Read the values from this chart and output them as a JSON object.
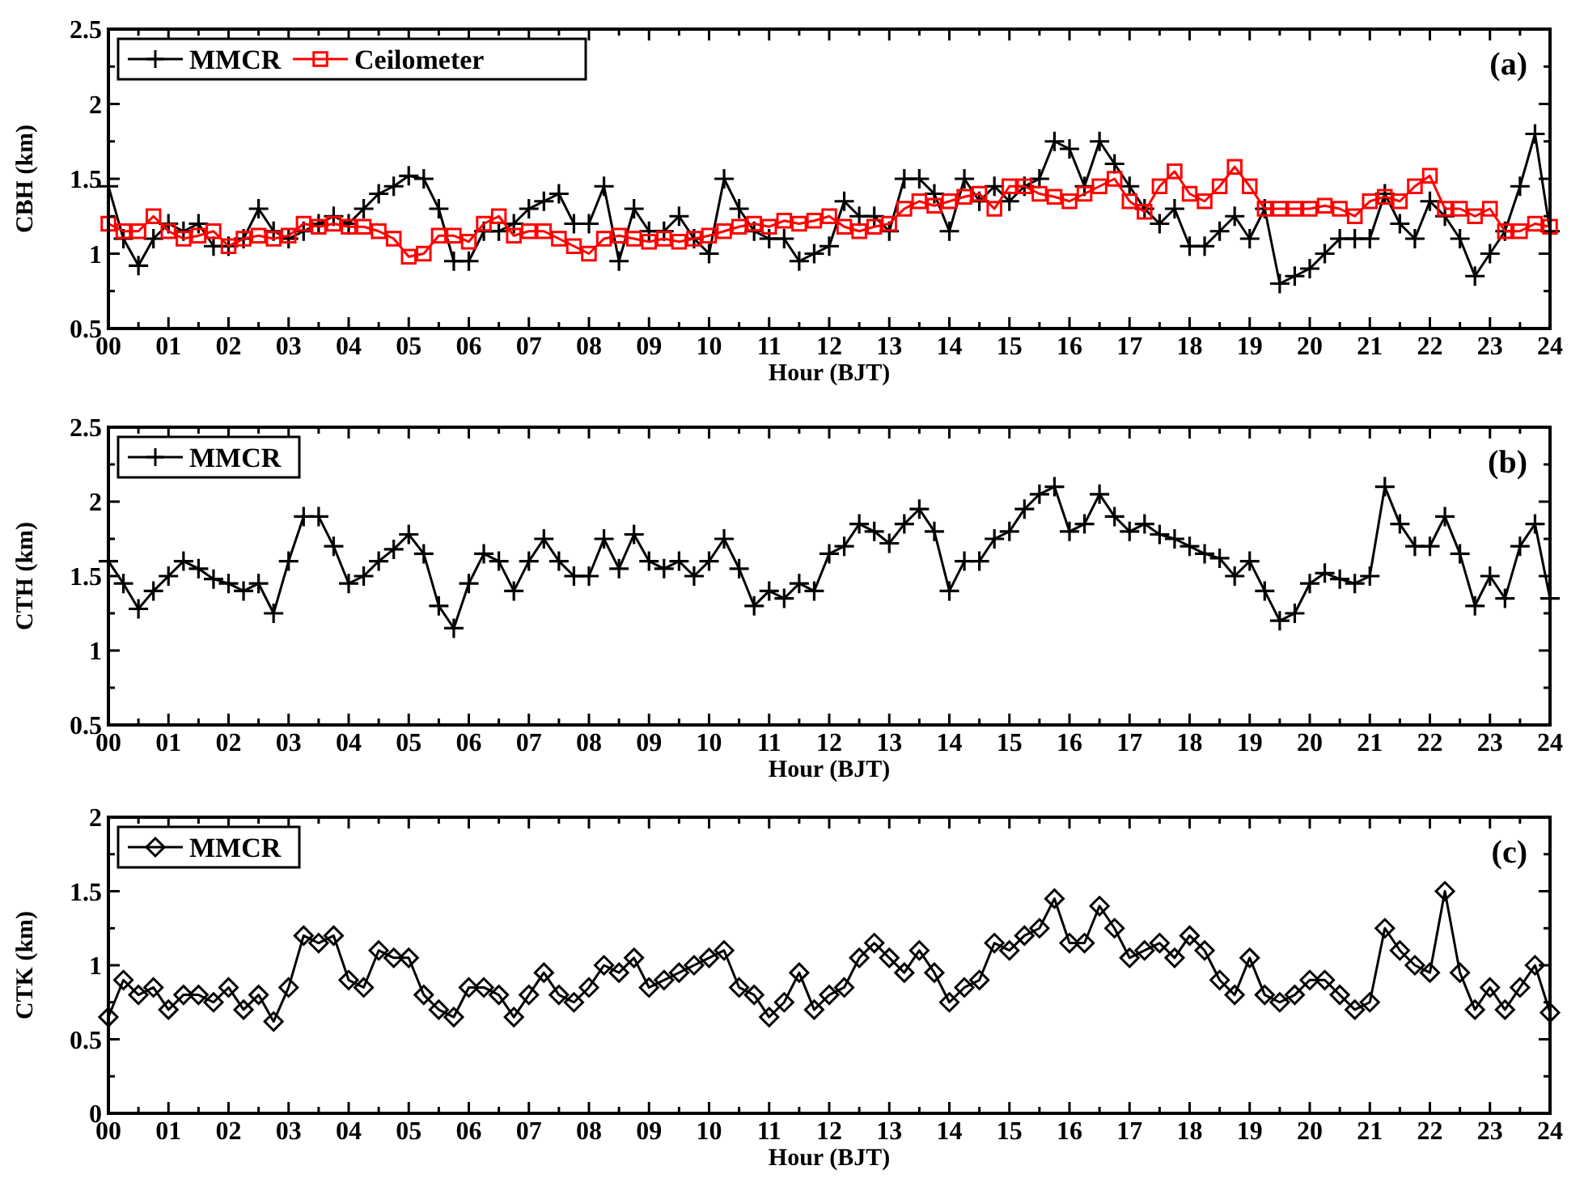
{
  "chart_data": [
    {
      "type": "line",
      "ylabel": "CBH (km)",
      "xlabel": "Hour (BJT)",
      "annotations": [
        "(a)"
      ],
      "legend": "top left",
      "grid": false,
      "line_style": "solid",
      "x": [
        0,
        0.25,
        0.5,
        0.75,
        1,
        1.25,
        1.5,
        1.75,
        2,
        2.25,
        2.5,
        2.75,
        3,
        3.25,
        3.5,
        3.75,
        4,
        4.25,
        4.5,
        4.75,
        5,
        5.25,
        5.5,
        5.75,
        6,
        6.25,
        6.5,
        6.75,
        7,
        7.25,
        7.5,
        7.75,
        8,
        8.25,
        8.5,
        8.75,
        9,
        9.25,
        9.5,
        9.75,
        10,
        10.25,
        10.5,
        10.75,
        11,
        11.25,
        11.5,
        11.75,
        12,
        12.25,
        12.5,
        12.75,
        13,
        13.25,
        13.5,
        13.75,
        14,
        14.25,
        14.5,
        14.75,
        15,
        15.25,
        15.5,
        15.75,
        16,
        16.25,
        16.5,
        16.75,
        17,
        17.25,
        17.5,
        17.75,
        18,
        18.25,
        18.5,
        18.75,
        19,
        19.25,
        19.5,
        19.75,
        20,
        20.25,
        20.5,
        20.75,
        21,
        21.25,
        21.5,
        21.75,
        22,
        22.25,
        22.5,
        22.75,
        23,
        23.25,
        23.5,
        23.75,
        24
      ],
      "xlim": [
        0,
        24
      ],
      "xticks": [
        {
          "value": 0,
          "label": "00"
        },
        {
          "value": 0.5,
          "label": null
        },
        {
          "value": 1,
          "label": "01"
        },
        {
          "value": 1.5,
          "label": null
        },
        {
          "value": 2,
          "label": "02"
        },
        {
          "value": 2.5,
          "label": null
        },
        {
          "value": 3,
          "label": "03"
        },
        {
          "value": 3.5,
          "label": null
        },
        {
          "value": 4,
          "label": "04"
        },
        {
          "value": 4.5,
          "label": null
        },
        {
          "value": 5,
          "label": "05"
        },
        {
          "value": 5.5,
          "label": null
        },
        {
          "value": 6,
          "label": "06"
        },
        {
          "value": 6.5,
          "label": null
        },
        {
          "value": 7,
          "label": "07"
        },
        {
          "value": 7.5,
          "label": null
        },
        {
          "value": 8,
          "label": "08"
        },
        {
          "value": 8.5,
          "label": null
        },
        {
          "value": 9,
          "label": "09"
        },
        {
          "value": 9.5,
          "label": null
        },
        {
          "value": 10,
          "label": "10"
        },
        {
          "value": 10.5,
          "label": null
        },
        {
          "value": 11,
          "label": "11"
        },
        {
          "value": 11.5,
          "label": null
        },
        {
          "value": 12,
          "label": "12"
        },
        {
          "value": 12.5,
          "label": null
        },
        {
          "value": 13,
          "label": "13"
        },
        {
          "value": 13.5,
          "label": null
        },
        {
          "value": 14,
          "label": "14"
        },
        {
          "value": 14.5,
          "label": null
        },
        {
          "value": 15,
          "label": "15"
        },
        {
          "value": 15.5,
          "label": null
        },
        {
          "value": 16,
          "label": "16"
        },
        {
          "value": 16.5,
          "label": null
        },
        {
          "value": 17,
          "label": "17"
        },
        {
          "value": 17.5,
          "label": null
        },
        {
          "value": 18,
          "label": "18"
        },
        {
          "value": 18.5,
          "label": null
        },
        {
          "value": 19,
          "label": "19"
        },
        {
          "value": 19.5,
          "label": null
        },
        {
          "value": 20,
          "label": "20"
        },
        {
          "value": 20.5,
          "label": null
        },
        {
          "value": 21,
          "label": "21"
        },
        {
          "value": 21.5,
          "label": null
        },
        {
          "value": 22,
          "label": "22"
        },
        {
          "value": 22.5,
          "label": null
        },
        {
          "value": 23,
          "label": "23"
        },
        {
          "value": 23.5,
          "label": null
        },
        {
          "value": 24,
          "label": "24"
        }
      ],
      "ylim": [
        0.5,
        2.5
      ],
      "yticks": [
        0.5,
        {
          "value": 0.75,
          "label": null
        },
        1,
        {
          "value": 1.25,
          "label": null
        },
        1.5,
        {
          "value": 1.75,
          "label": null
        },
        2,
        {
          "value": 2.25,
          "label": null
        },
        2.5
      ],
      "series": [
        {
          "name": "MMCR",
          "color": "#000000",
          "marker": "cross",
          "values": [
            1.45,
            1.1,
            0.92,
            1.1,
            1.2,
            1.15,
            1.2,
            1.05,
            1.05,
            1.1,
            1.3,
            1.15,
            1.1,
            1.15,
            1.2,
            1.25,
            1.2,
            1.3,
            1.4,
            1.45,
            1.52,
            1.5,
            1.3,
            0.95,
            0.95,
            1.15,
            1.15,
            1.2,
            1.3,
            1.35,
            1.4,
            1.2,
            1.2,
            1.45,
            0.95,
            1.3,
            1.15,
            1.15,
            1.25,
            1.1,
            1.0,
            1.5,
            1.3,
            1.15,
            1.1,
            1.1,
            0.95,
            1.0,
            1.05,
            1.35,
            1.25,
            1.25,
            1.15,
            1.5,
            1.5,
            1.4,
            1.15,
            1.5,
            1.35,
            1.45,
            1.35,
            1.45,
            1.5,
            1.75,
            1.7,
            1.45,
            1.75,
            1.6,
            1.45,
            1.3,
            1.2,
            1.3,
            1.05,
            1.05,
            1.15,
            1.25,
            1.1,
            1.3,
            0.8,
            0.85,
            0.9,
            1.0,
            1.1,
            1.1,
            1.1,
            1.4,
            1.2,
            1.1,
            1.35,
            1.25,
            1.1,
            0.85,
            1.0,
            1.15,
            1.45,
            1.8,
            1.15
          ]
        },
        {
          "name": "Ceilometer",
          "color": "#ff0000",
          "marker": "square",
          "values": [
            1.2,
            1.15,
            1.15,
            1.25,
            1.15,
            1.1,
            1.12,
            1.15,
            1.05,
            1.1,
            1.12,
            1.1,
            1.12,
            1.2,
            1.18,
            1.2,
            1.18,
            1.18,
            1.15,
            1.1,
            0.98,
            1.0,
            1.12,
            1.12,
            1.08,
            1.2,
            1.25,
            1.12,
            1.15,
            1.15,
            1.1,
            1.05,
            1.0,
            1.1,
            1.12,
            1.1,
            1.08,
            1.1,
            1.08,
            1.1,
            1.12,
            1.15,
            1.18,
            1.2,
            1.18,
            1.22,
            1.2,
            1.22,
            1.25,
            1.18,
            1.15,
            1.18,
            1.2,
            1.3,
            1.35,
            1.32,
            1.35,
            1.38,
            1.4,
            1.3,
            1.45,
            1.45,
            1.4,
            1.38,
            1.35,
            1.4,
            1.45,
            1.5,
            1.35,
            1.28,
            1.45,
            1.55,
            1.4,
            1.35,
            1.45,
            1.58,
            1.45,
            1.3,
            1.3,
            1.3,
            1.3,
            1.32,
            1.3,
            1.25,
            1.35,
            1.38,
            1.35,
            1.45,
            1.52,
            1.3,
            1.3,
            1.25,
            1.3,
            1.15,
            1.15,
            1.2,
            1.18
          ]
        }
      ]
    },
    {
      "type": "line",
      "ylabel": "CTH (km)",
      "xlabel": "Hour (BJT)",
      "annotations": [
        "(b)"
      ],
      "legend": "top left",
      "grid": false,
      "line_style": "solid",
      "x": [
        0,
        0.25,
        0.5,
        0.75,
        1,
        1.25,
        1.5,
        1.75,
        2,
        2.25,
        2.5,
        2.75,
        3,
        3.25,
        3.5,
        3.75,
        4,
        4.25,
        4.5,
        4.75,
        5,
        5.25,
        5.5,
        5.75,
        6,
        6.25,
        6.5,
        6.75,
        7,
        7.25,
        7.5,
        7.75,
        8,
        8.25,
        8.5,
        8.75,
        9,
        9.25,
        9.5,
        9.75,
        10,
        10.25,
        10.5,
        10.75,
        11,
        11.25,
        11.5,
        11.75,
        12,
        12.25,
        12.5,
        12.75,
        13,
        13.25,
        13.5,
        13.75,
        14,
        14.25,
        14.5,
        14.75,
        15,
        15.25,
        15.5,
        15.75,
        16,
        16.25,
        16.5,
        16.75,
        17,
        17.25,
        17.5,
        17.75,
        18,
        18.25,
        18.5,
        18.75,
        19,
        19.25,
        19.5,
        19.75,
        20,
        20.25,
        20.5,
        20.75,
        21,
        21.25,
        21.5,
        21.75,
        22,
        22.25,
        22.5,
        22.75,
        23,
        23.25,
        23.5,
        23.75,
        24
      ],
      "xlim": [
        0,
        24
      ],
      "xticks": [
        {
          "value": 0,
          "label": "00"
        },
        {
          "value": 0.5,
          "label": null
        },
        {
          "value": 1,
          "label": "01"
        },
        {
          "value": 1.5,
          "label": null
        },
        {
          "value": 2,
          "label": "02"
        },
        {
          "value": 2.5,
          "label": null
        },
        {
          "value": 3,
          "label": "03"
        },
        {
          "value": 3.5,
          "label": null
        },
        {
          "value": 4,
          "label": "04"
        },
        {
          "value": 4.5,
          "label": null
        },
        {
          "value": 5,
          "label": "05"
        },
        {
          "value": 5.5,
          "label": null
        },
        {
          "value": 6,
          "label": "06"
        },
        {
          "value": 6.5,
          "label": null
        },
        {
          "value": 7,
          "label": "07"
        },
        {
          "value": 7.5,
          "label": null
        },
        {
          "value": 8,
          "label": "08"
        },
        {
          "value": 8.5,
          "label": null
        },
        {
          "value": 9,
          "label": "09"
        },
        {
          "value": 9.5,
          "label": null
        },
        {
          "value": 10,
          "label": "10"
        },
        {
          "value": 10.5,
          "label": null
        },
        {
          "value": 11,
          "label": "11"
        },
        {
          "value": 11.5,
          "label": null
        },
        {
          "value": 12,
          "label": "12"
        },
        {
          "value": 12.5,
          "label": null
        },
        {
          "value": 13,
          "label": "13"
        },
        {
          "value": 13.5,
          "label": null
        },
        {
          "value": 14,
          "label": "14"
        },
        {
          "value": 14.5,
          "label": null
        },
        {
          "value": 15,
          "label": "15"
        },
        {
          "value": 15.5,
          "label": null
        },
        {
          "value": 16,
          "label": "16"
        },
        {
          "value": 16.5,
          "label": null
        },
        {
          "value": 17,
          "label": "17"
        },
        {
          "value": 17.5,
          "label": null
        },
        {
          "value": 18,
          "label": "18"
        },
        {
          "value": 18.5,
          "label": null
        },
        {
          "value": 19,
          "label": "19"
        },
        {
          "value": 19.5,
          "label": null
        },
        {
          "value": 20,
          "label": "20"
        },
        {
          "value": 20.5,
          "label": null
        },
        {
          "value": 21,
          "label": "21"
        },
        {
          "value": 21.5,
          "label": null
        },
        {
          "value": 22,
          "label": "22"
        },
        {
          "value": 22.5,
          "label": null
        },
        {
          "value": 23,
          "label": "23"
        },
        {
          "value": 23.5,
          "label": null
        },
        {
          "value": 24,
          "label": "24"
        }
      ],
      "ylim": [
        0.5,
        2.5
      ],
      "yticks": [
        0.5,
        {
          "value": 0.75,
          "label": null
        },
        1,
        {
          "value": 1.25,
          "label": null
        },
        1.5,
        {
          "value": 1.75,
          "label": null
        },
        2,
        {
          "value": 2.25,
          "label": null
        },
        2.5
      ],
      "series": [
        {
          "name": "MMCR",
          "color": "#000000",
          "marker": "cross",
          "values": [
            1.6,
            1.45,
            1.28,
            1.4,
            1.5,
            1.6,
            1.55,
            1.48,
            1.45,
            1.4,
            1.45,
            1.25,
            1.6,
            1.9,
            1.9,
            1.7,
            1.45,
            1.5,
            1.6,
            1.68,
            1.78,
            1.65,
            1.3,
            1.15,
            1.45,
            1.65,
            1.6,
            1.4,
            1.6,
            1.75,
            1.6,
            1.5,
            1.5,
            1.75,
            1.55,
            1.78,
            1.6,
            1.55,
            1.6,
            1.5,
            1.6,
            1.75,
            1.55,
            1.3,
            1.4,
            1.35,
            1.45,
            1.4,
            1.65,
            1.7,
            1.85,
            1.8,
            1.72,
            1.85,
            1.95,
            1.8,
            1.4,
            1.6,
            1.6,
            1.75,
            1.8,
            1.95,
            2.05,
            2.1,
            1.8,
            1.85,
            2.05,
            1.9,
            1.8,
            1.85,
            1.78,
            1.75,
            1.7,
            1.65,
            1.62,
            1.5,
            1.6,
            1.4,
            1.2,
            1.25,
            1.45,
            1.52,
            1.48,
            1.45,
            1.5,
            2.1,
            1.85,
            1.7,
            1.7,
            1.9,
            1.65,
            1.3,
            1.5,
            1.35,
            1.7,
            1.85,
            1.35
          ]
        }
      ]
    },
    {
      "type": "line",
      "ylabel": "CTK (km)",
      "xlabel": "Hour (BJT)",
      "annotations": [
        "(c)"
      ],
      "legend": "top left",
      "grid": false,
      "line_style": "solid",
      "x": [
        0,
        0.25,
        0.5,
        0.75,
        1,
        1.25,
        1.5,
        1.75,
        2,
        2.25,
        2.5,
        2.75,
        3,
        3.25,
        3.5,
        3.75,
        4,
        4.25,
        4.5,
        4.75,
        5,
        5.25,
        5.5,
        5.75,
        6,
        6.25,
        6.5,
        6.75,
        7,
        7.25,
        7.5,
        7.75,
        8,
        8.25,
        8.5,
        8.75,
        9,
        9.25,
        9.5,
        9.75,
        10,
        10.25,
        10.5,
        10.75,
        11,
        11.25,
        11.5,
        11.75,
        12,
        12.25,
        12.5,
        12.75,
        13,
        13.25,
        13.5,
        13.75,
        14,
        14.25,
        14.5,
        14.75,
        15,
        15.25,
        15.5,
        15.75,
        16,
        16.25,
        16.5,
        16.75,
        17,
        17.25,
        17.5,
        17.75,
        18,
        18.25,
        18.5,
        18.75,
        19,
        19.25,
        19.5,
        19.75,
        20,
        20.25,
        20.5,
        20.75,
        21,
        21.25,
        21.5,
        21.75,
        22,
        22.25,
        22.5,
        22.75,
        23,
        23.25,
        23.5,
        23.75,
        24
      ],
      "xlim": [
        0,
        24
      ],
      "xticks": [
        {
          "value": 0,
          "label": "00"
        },
        {
          "value": 0.5,
          "label": null
        },
        {
          "value": 1,
          "label": "01"
        },
        {
          "value": 1.5,
          "label": null
        },
        {
          "value": 2,
          "label": "02"
        },
        {
          "value": 2.5,
          "label": null
        },
        {
          "value": 3,
          "label": "03"
        },
        {
          "value": 3.5,
          "label": null
        },
        {
          "value": 4,
          "label": "04"
        },
        {
          "value": 4.5,
          "label": null
        },
        {
          "value": 5,
          "label": "05"
        },
        {
          "value": 5.5,
          "label": null
        },
        {
          "value": 6,
          "label": "06"
        },
        {
          "value": 6.5,
          "label": null
        },
        {
          "value": 7,
          "label": "07"
        },
        {
          "value": 7.5,
          "label": null
        },
        {
          "value": 8,
          "label": "08"
        },
        {
          "value": 8.5,
          "label": null
        },
        {
          "value": 9,
          "label": "09"
        },
        {
          "value": 9.5,
          "label": null
        },
        {
          "value": 10,
          "label": "10"
        },
        {
          "value": 10.5,
          "label": null
        },
        {
          "value": 11,
          "label": "11"
        },
        {
          "value": 11.5,
          "label": null
        },
        {
          "value": 12,
          "label": "12"
        },
        {
          "value": 12.5,
          "label": null
        },
        {
          "value": 13,
          "label": "13"
        },
        {
          "value": 13.5,
          "label": null
        },
        {
          "value": 14,
          "label": "14"
        },
        {
          "value": 14.5,
          "label": null
        },
        {
          "value": 15,
          "label": "15"
        },
        {
          "value": 15.5,
          "label": null
        },
        {
          "value": 16,
          "label": "16"
        },
        {
          "value": 16.5,
          "label": null
        },
        {
          "value": 17,
          "label": "17"
        },
        {
          "value": 17.5,
          "label": null
        },
        {
          "value": 18,
          "label": "18"
        },
        {
          "value": 18.5,
          "label": null
        },
        {
          "value": 19,
          "label": "19"
        },
        {
          "value": 19.5,
          "label": null
        },
        {
          "value": 20,
          "label": "20"
        },
        {
          "value": 20.5,
          "label": null
        },
        {
          "value": 21,
          "label": "21"
        },
        {
          "value": 21.5,
          "label": null
        },
        {
          "value": 22,
          "label": "22"
        },
        {
          "value": 22.5,
          "label": null
        },
        {
          "value": 23,
          "label": "23"
        },
        {
          "value": 23.5,
          "label": null
        },
        {
          "value": 24,
          "label": "24"
        }
      ],
      "ylim": [
        0,
        2
      ],
      "yticks": [
        0,
        {
          "value": 0.25,
          "label": null
        },
        0.5,
        {
          "value": 0.75,
          "label": null
        },
        1,
        {
          "value": 1.25,
          "label": null
        },
        1.5,
        {
          "value": 1.75,
          "label": null
        },
        2
      ],
      "series": [
        {
          "name": "MMCR",
          "color": "#000000",
          "marker": "diamond",
          "values": [
            0.65,
            0.9,
            0.8,
            0.85,
            0.7,
            0.8,
            0.8,
            0.75,
            0.85,
            0.7,
            0.8,
            0.62,
            0.85,
            1.2,
            1.15,
            1.2,
            0.9,
            0.85,
            1.1,
            1.05,
            1.05,
            0.8,
            0.7,
            0.65,
            0.85,
            0.85,
            0.8,
            0.65,
            0.8,
            0.95,
            0.8,
            0.75,
            0.85,
            1.0,
            0.95,
            1.05,
            0.85,
            0.9,
            0.95,
            1.0,
            1.05,
            1.1,
            0.85,
            0.8,
            0.65,
            0.75,
            0.95,
            0.7,
            0.8,
            0.85,
            1.05,
            1.15,
            1.05,
            0.95,
            1.1,
            0.95,
            0.75,
            0.85,
            0.9,
            1.15,
            1.1,
            1.2,
            1.25,
            1.45,
            1.15,
            1.15,
            1.4,
            1.25,
            1.05,
            1.1,
            1.15,
            1.05,
            1.2,
            1.1,
            0.9,
            0.8,
            1.05,
            0.8,
            0.75,
            0.8,
            0.9,
            0.9,
            0.8,
            0.7,
            0.75,
            1.25,
            1.1,
            1.0,
            0.95,
            1.5,
            0.95,
            0.7,
            0.85,
            0.7,
            0.85,
            1.0,
            0.68
          ]
        }
      ]
    }
  ]
}
